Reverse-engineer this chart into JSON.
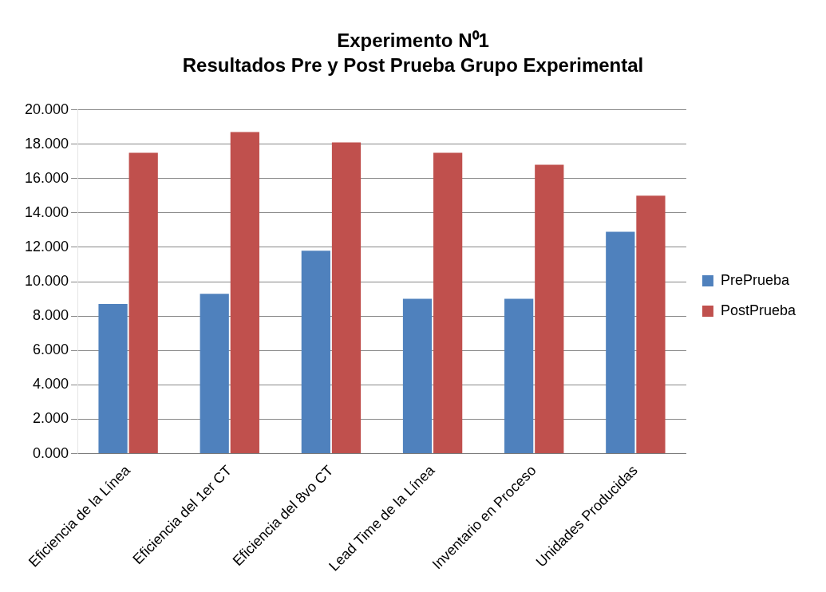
{
  "chart_data": {
    "type": "bar",
    "title": "Experimento N⁰1",
    "subtitle": "Resultados Pre y Post Prueba Grupo Experimental",
    "categories": [
      "Eficiencia de la Línea",
      "Eficiencia del 1er CT",
      "Eficiencia del 8vo CT",
      "Lead Time de la Línea",
      "Inventario en Proceso",
      "Unidades Producidas"
    ],
    "series": [
      {
        "name": "PrePrueba",
        "color": "#4f81bd",
        "values": [
          8.7,
          9.3,
          11.8,
          9.0,
          9.0,
          12.9
        ]
      },
      {
        "name": "PostPrueba",
        "color": "#c0504d",
        "values": [
          17.5,
          18.7,
          18.1,
          17.5,
          16.8,
          15.0
        ]
      }
    ],
    "ylim": [
      0,
      20
    ],
    "yticks": [
      {
        "value": 0,
        "label": "0.000"
      },
      {
        "value": 2,
        "label": "2.000"
      },
      {
        "value": 4,
        "label": "4.000"
      },
      {
        "value": 6,
        "label": "6.000"
      },
      {
        "value": 8,
        "label": "8.000"
      },
      {
        "value": 10,
        "label": "10.000"
      },
      {
        "value": 12,
        "label": "12.000"
      },
      {
        "value": 14,
        "label": "14.000"
      },
      {
        "value": 16,
        "label": "16.000"
      },
      {
        "value": 18,
        "label": "18.000"
      },
      {
        "value": 20,
        "label": "20.000"
      }
    ],
    "grid": "y",
    "legend": "right"
  }
}
